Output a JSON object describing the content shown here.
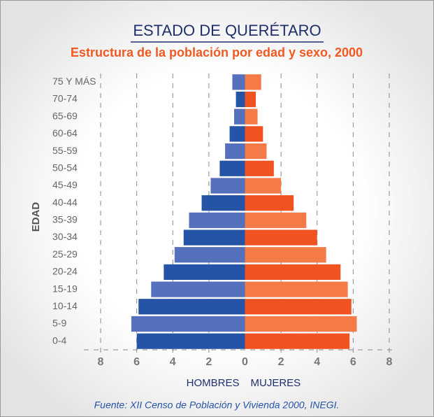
{
  "chart_data": {
    "type": "pyramid",
    "title": "ESTADO DE QUERÉTARO",
    "subtitle": "Estructura de la población por edad y sexo, 2000",
    "y_label": "EDAD",
    "source": "Fuente: XII Censo de Población y Vivienda 2000, INEGI.",
    "categories": [
      "0-4",
      "5-9",
      "10-14",
      "15-19",
      "20-24",
      "25-29",
      "30-34",
      "35-39",
      "40-44",
      "45-49",
      "50-54",
      "55-59",
      "60-64",
      "65-69",
      "70-74",
      "75 Y MÁS"
    ],
    "series": [
      {
        "name": "HOMBRES",
        "side": "left",
        "colors": [
          "#2553a6",
          "#5570bd"
        ],
        "values": [
          6.0,
          6.3,
          5.9,
          5.2,
          4.5,
          3.9,
          3.4,
          3.1,
          2.4,
          1.9,
          1.4,
          1.1,
          0.85,
          0.6,
          0.5,
          0.7
        ]
      },
      {
        "name": "MUJERES",
        "side": "right",
        "colors": [
          "#f0531f",
          "#f47a48"
        ],
        "values": [
          5.8,
          6.2,
          5.9,
          5.7,
          5.3,
          4.5,
          4.0,
          3.4,
          2.7,
          2.0,
          1.6,
          1.2,
          1.0,
          0.7,
          0.6,
          0.9
        ]
      }
    ],
    "xlim": [
      -8,
      8
    ],
    "xticks": [
      {
        "value": -8,
        "label": "8"
      },
      {
        "value": -6,
        "label": "6"
      },
      {
        "value": -4,
        "label": "4"
      },
      {
        "value": -2,
        "label": "2"
      },
      0,
      2,
      4,
      6,
      8
    ],
    "grid": true
  }
}
